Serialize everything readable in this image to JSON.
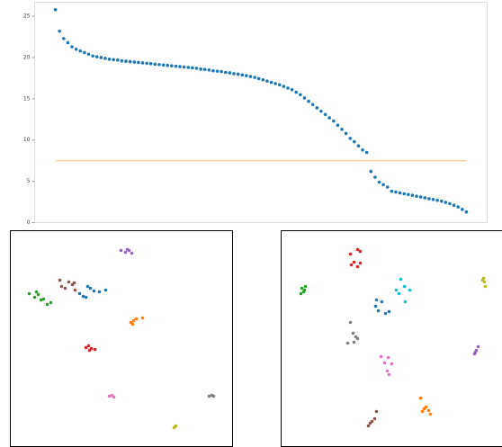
{
  "chart_data": [
    {
      "type": "scatter",
      "color": "#1f77b4",
      "x": [
        0,
        1,
        2,
        3,
        4,
        5,
        6,
        7,
        8,
        9,
        10,
        11,
        12,
        13,
        14,
        15,
        16,
        17,
        18,
        19,
        20,
        21,
        22,
        23,
        24,
        25,
        26,
        27,
        28,
        29,
        30,
        31,
        32,
        33,
        34,
        35,
        36,
        37,
        38,
        39,
        40,
        41,
        42,
        43,
        44,
        45,
        46,
        47,
        48,
        49,
        50,
        51,
        52,
        53,
        54,
        55,
        56,
        57,
        58,
        59,
        60,
        61,
        62,
        63,
        64,
        65,
        66,
        67,
        68,
        69,
        70,
        71,
        72,
        73,
        74,
        75,
        76,
        77,
        78,
        79,
        80,
        81,
        82,
        83,
        84,
        85,
        86,
        87,
        88,
        89,
        90,
        91,
        92,
        93,
        94,
        95,
        96,
        97,
        98,
        99
      ],
      "values": [
        25.8,
        23.2,
        22.3,
        21.8,
        21.3,
        21.0,
        20.8,
        20.6,
        20.4,
        20.2,
        20.1,
        20.0,
        19.9,
        19.8,
        19.75,
        19.7,
        19.6,
        19.55,
        19.5,
        19.45,
        19.4,
        19.35,
        19.3,
        19.25,
        19.2,
        19.15,
        19.1,
        19.05,
        19.0,
        18.95,
        18.9,
        18.85,
        18.8,
        18.75,
        18.7,
        18.6,
        18.55,
        18.5,
        18.4,
        18.35,
        18.3,
        18.2,
        18.15,
        18.05,
        18.0,
        17.9,
        17.8,
        17.7,
        17.6,
        17.45,
        17.3,
        17.15,
        17.0,
        16.85,
        16.7,
        16.5,
        16.3,
        16.1,
        15.8,
        15.5,
        15.1,
        14.7,
        14.3,
        13.9,
        13.5,
        13.1,
        12.7,
        12.3,
        11.8,
        11.3,
        10.8,
        10.2,
        9.8,
        9.3,
        8.8,
        8.5,
        6.2,
        5.5,
        4.9,
        4.6,
        4.3,
        3.8,
        3.7,
        3.6,
        3.5,
        3.4,
        3.3,
        3.2,
        3.1,
        3.0,
        2.9,
        2.8,
        2.7,
        2.6,
        2.45,
        2.3,
        2.1,
        1.9,
        1.6,
        1.3
      ],
      "reference_line": {
        "value": 7.5,
        "color": "#fdd49a"
      },
      "xlim": [
        -5,
        104
      ],
      "ylim": [
        0,
        26.7
      ],
      "yticks": [
        0,
        5,
        10,
        15,
        20,
        25
      ]
    },
    {
      "type": "scatter",
      "xlim": [
        0,
        247
      ],
      "ylim": [
        0,
        240
      ],
      "series": [
        {
          "color": "#9467bd",
          "x": [
            123,
            128,
            132,
            135,
            130
          ],
          "values": [
            218,
            216,
            218,
            215,
            219
          ]
        },
        {
          "color": "#8c564b",
          "x": [
            55,
            57,
            65,
            69,
            72,
            61,
            71
          ],
          "values": [
            185,
            178,
            183,
            180,
            174,
            176,
            182
          ]
        },
        {
          "color": "#2ca02c",
          "x": [
            21,
            27,
            31,
            34,
            37,
            41,
            45,
            29
          ],
          "values": [
            170,
            166,
            169,
            163,
            164,
            158,
            160,
            172
          ]
        },
        {
          "color": "#1f77b4",
          "x": [
            77,
            81,
            86,
            89,
            93,
            99,
            106,
            84
          ],
          "values": [
            170,
            167,
            178,
            176,
            173,
            172,
            174,
            166
          ]
        },
        {
          "color": "#ff7f0e",
          "x": [
            134,
            137,
            140,
            147,
            136
          ],
          "values": [
            138,
            140,
            142,
            143,
            136
          ]
        },
        {
          "color": "#d62728",
          "x": [
            84,
            87,
            90,
            94,
            88
          ],
          "values": [
            110,
            112,
            109,
            108,
            107
          ]
        },
        {
          "color": "#e377c2",
          "x": [
            110,
            113,
            115
          ],
          "values": [
            56,
            57,
            55
          ]
        },
        {
          "color": "#7f7f7f",
          "x": [
            221,
            224,
            226
          ],
          "values": [
            56,
            57,
            56
          ]
        },
        {
          "color": "#bcbd22",
          "x": [
            182,
            184,
            183
          ],
          "values": [
            21,
            23,
            22
          ]
        }
      ]
    },
    {
      "type": "scatter",
      "xlim": [
        0,
        247
      ],
      "ylim": [
        0,
        240
      ],
      "series": [
        {
          "color": "#d62728",
          "x": [
            78,
            81,
            85,
            88,
            85,
            88,
            77
          ],
          "values": [
            202,
            205,
            200,
            204,
            219,
            217,
            214
          ]
        },
        {
          "color": "#2ca02c",
          "x": [
            23,
            25,
            27,
            22,
            26
          ],
          "values": [
            176,
            172,
            178,
            170,
            174
          ]
        },
        {
          "color": "#17becf",
          "x": [
            128,
            133,
            137,
            143,
            138,
            131
          ],
          "values": [
            174,
            186,
            178,
            174,
            161,
            170
          ]
        },
        {
          "color": "#bcbd22",
          "x": [
            225,
            226,
            227,
            224
          ],
          "values": [
            187,
            183,
            178,
            185
          ]
        },
        {
          "color": "#1f77b4",
          "x": [
            105,
            108,
            112,
            116,
            120,
            106
          ],
          "values": [
            156,
            151,
            161,
            148,
            150,
            163
          ]
        },
        {
          "color": "#7f7f7f",
          "x": [
            74,
            80,
            83,
            77,
            85,
            81
          ],
          "values": [
            115,
            126,
            122,
            138,
            120,
            116
          ]
        },
        {
          "color": "#9467bd",
          "x": [
            215,
            217,
            219,
            216
          ],
          "values": [
            103,
            107,
            111,
            105
          ]
        },
        {
          "color": "#e377c2",
          "x": [
            111,
            115,
            119,
            123,
            118,
            120
          ],
          "values": [
            100,
            93,
            99,
            92,
            84,
            80
          ]
        },
        {
          "color": "#8c564b",
          "x": [
            97,
            101,
            104,
            106,
            99
          ],
          "values": [
            23,
            28,
            31,
            39,
            26
          ]
        },
        {
          "color": "#ff7f0e",
          "x": [
            155,
            159,
            164,
            157,
            166,
            161
          ],
          "values": [
            54,
            42,
            40,
            39,
            36,
            44
          ]
        }
      ]
    }
  ]
}
